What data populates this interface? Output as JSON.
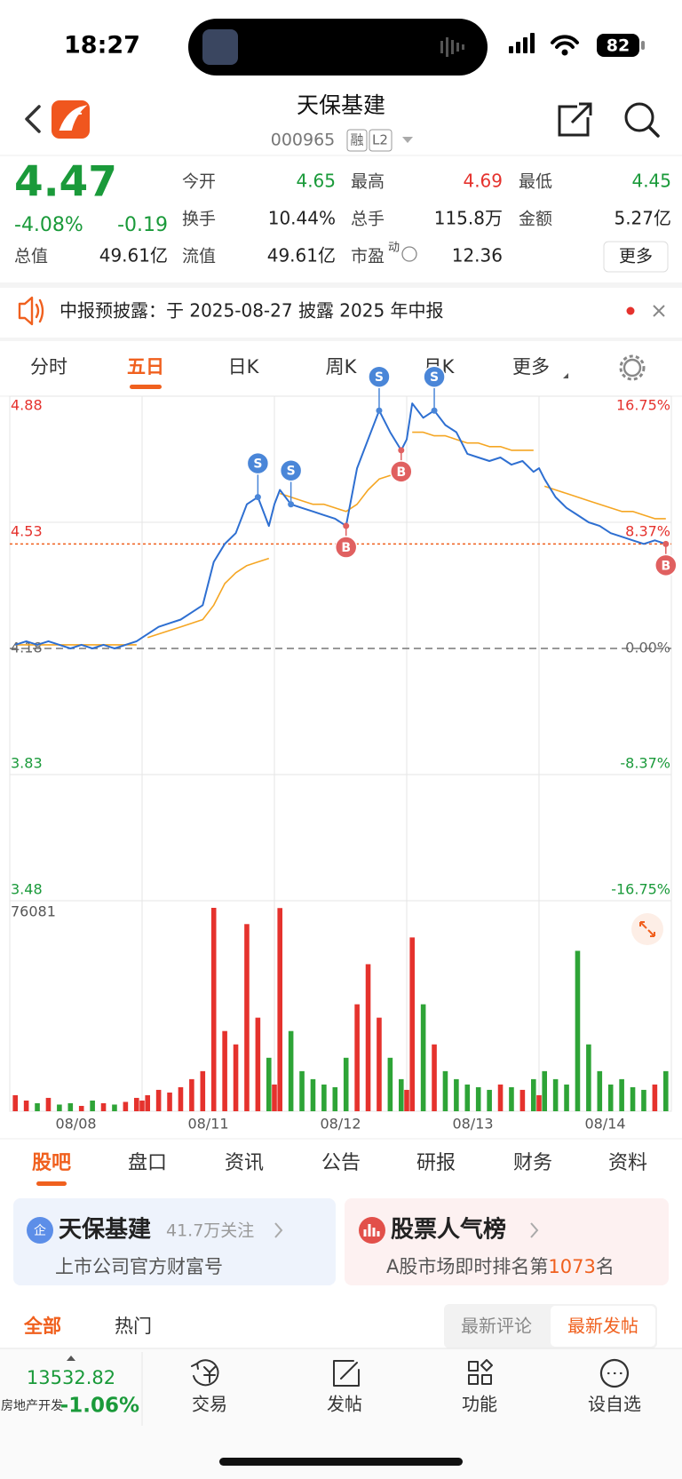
{
  "status_bar": {
    "time": "18:27",
    "battery": "82"
  },
  "header": {
    "title": "天保基建",
    "code": "000965",
    "badges": [
      "融",
      "L2"
    ]
  },
  "quote": {
    "price": 4.47,
    "change_pct": "-4.08%",
    "change": "-0.19",
    "fields": [
      {
        "label": "今开",
        "value": "4.65",
        "color": "#1a9a3a"
      },
      {
        "label": "最高",
        "value": "4.69",
        "color": "#e5322d"
      },
      {
        "label": "最低",
        "value": "4.45",
        "color": "#1a9a3a"
      },
      {
        "label": "换手",
        "value": "10.44%",
        "color": "#222222"
      },
      {
        "label": "总手",
        "value": "115.8万",
        "color": "#222222"
      },
      {
        "label": "金额",
        "value": "5.27亿",
        "color": "#222222"
      },
      {
        "label": "总值",
        "value": "49.61亿",
        "color": "#222222"
      },
      {
        "label": "流值",
        "value": "49.61亿",
        "color": "#222222"
      },
      {
        "label": "市盈",
        "sup": "动",
        "value": "12.36",
        "color": "#222222"
      }
    ],
    "more": "更多"
  },
  "notice": "中报预披露：于 2025-08-27 披露 2025 年中报",
  "chart_tabs": [
    "分时",
    "五日",
    "日K",
    "周K",
    "月K",
    "更多"
  ],
  "active_chart_tab": 1,
  "chart_data": {
    "type": "line",
    "day_labels": [
      "08/08",
      "08/11",
      "08/12",
      "08/13",
      "08/14"
    ],
    "ylim": [
      3.48,
      4.88
    ],
    "yticks": [
      4.88,
      4.53,
      4.18,
      3.83,
      3.48
    ],
    "y2lim": [
      -16.75,
      16.75
    ],
    "y2ticks": [
      {
        "value": 16.75,
        "label": "16.75%"
      },
      {
        "value": 8.37,
        "label": "8.37%"
      },
      {
        "value": 0,
        "label": "0.00%"
      },
      {
        "value": -8.37,
        "label": "-8.37%"
      },
      {
        "value": -16.75,
        "label": "-16.75%"
      }
    ],
    "series": [
      {
        "name": "price",
        "color": "#2e6fd1",
        "values": [
          4.19,
          4.2,
          4.19,
          4.2,
          4.19,
          4.18,
          4.19,
          4.18,
          4.19,
          4.18,
          4.19,
          4.2,
          4.21,
          4.22,
          4.24,
          4.25,
          4.26,
          4.28,
          4.3,
          4.42,
          4.47,
          4.5,
          4.58,
          4.6,
          4.52,
          4.58,
          4.62,
          4.58,
          4.57,
          4.56,
          4.55,
          4.54,
          4.52,
          4.68,
          4.76,
          4.84,
          4.78,
          4.73,
          4.76,
          4.86,
          4.82,
          4.84,
          4.8,
          4.78,
          4.72,
          4.71,
          4.7,
          4.71,
          4.69,
          4.7,
          4.67,
          4.68,
          4.65,
          4.6,
          4.57,
          4.55,
          4.53,
          4.52,
          4.5,
          4.49,
          4.48,
          4.47,
          4.48,
          4.47
        ]
      },
      {
        "name": "average",
        "color": "#f5a623",
        "values": [
          4.19,
          4.19,
          4.19,
          4.19,
          4.19,
          4.19,
          4.19,
          4.19,
          4.19,
          4.19,
          4.19,
          4.19,
          null,
          4.21,
          4.22,
          4.23,
          4.24,
          4.25,
          4.26,
          4.3,
          4.36,
          4.39,
          4.41,
          4.42,
          4.43,
          null,
          4.61,
          4.6,
          4.59,
          4.58,
          4.58,
          4.57,
          4.56,
          4.58,
          4.62,
          4.65,
          4.66,
          4.66,
          null,
          4.78,
          4.78,
          4.77,
          4.77,
          4.76,
          4.75,
          4.75,
          4.74,
          4.74,
          4.73,
          4.73,
          4.73,
          null,
          4.63,
          4.62,
          4.61,
          4.6,
          4.59,
          4.58,
          4.57,
          4.56,
          4.56,
          4.55,
          4.54,
          4.54
        ]
      }
    ],
    "volume": {
      "ylim": [
        0,
        76081
      ],
      "up_color": "#e5322d",
      "down_color": "#2ea437",
      "values": [
        6000,
        4000,
        3000,
        5000,
        2500,
        3000,
        2000,
        4000,
        3000,
        2500,
        3500,
        5000,
        4000,
        6000,
        8000,
        7000,
        9000,
        12000,
        15000,
        76081,
        30000,
        25000,
        70000,
        35000,
        20000,
        10000,
        76000,
        30000,
        15000,
        12000,
        10000,
        9000,
        20000,
        40000,
        55000,
        35000,
        20000,
        12000,
        8000,
        65000,
        40000,
        25000,
        15000,
        12000,
        10000,
        9000,
        8000,
        10000,
        9000,
        8000,
        12000,
        6000,
        15000,
        12000,
        10000,
        60000,
        25000,
        15000,
        10000,
        12000,
        9000,
        8000,
        10000,
        15000
      ]
    },
    "trades": [
      {
        "label": "S",
        "point": 23
      },
      {
        "label": "S",
        "point": 27
      },
      {
        "label": "B",
        "point": 32
      },
      {
        "label": "S",
        "point": 35
      },
      {
        "label": "B",
        "point": 37
      },
      {
        "label": "S",
        "point": 41
      },
      {
        "label": "B",
        "point": 63
      }
    ]
  },
  "section_tabs": [
    "股吧",
    "盘口",
    "资讯",
    "公告",
    "研报",
    "财务",
    "资料"
  ],
  "active_section_tab": 0,
  "cards": [
    {
      "title": "天保基建",
      "sub": "41.7万关注",
      "desc": "上市公司官方财富号"
    },
    {
      "title": "股票人气榜",
      "desc_parts": [
        "A股市场即时排名第",
        "1073",
        "名"
      ]
    }
  ],
  "filters": [
    "全部",
    "热门"
  ],
  "sort_options": [
    "最新评论",
    "最新发帖"
  ],
  "bottom_bar": {
    "index_value": "13532.82",
    "sector": "房地产开发",
    "sector_change": "-1.06%",
    "actions": [
      "交易",
      "发帖",
      "功能",
      "设自选"
    ]
  }
}
